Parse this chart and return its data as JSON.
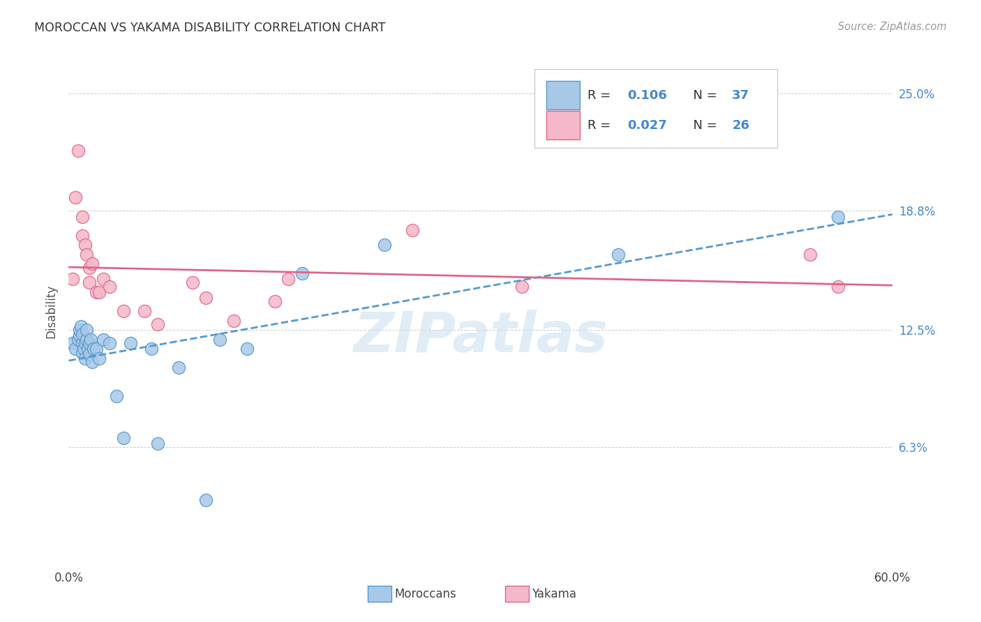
{
  "title": "MOROCCAN VS YAKAMA DISABILITY CORRELATION CHART",
  "source": "Source: ZipAtlas.com",
  "ylabel": "Disability",
  "xlim": [
    0.0,
    0.6
  ],
  "ylim": [
    0.0,
    0.27
  ],
  "yticks": [
    0.063,
    0.125,
    0.188,
    0.25
  ],
  "ytick_labels": [
    "6.3%",
    "12.5%",
    "18.8%",
    "25.0%"
  ],
  "xticks": [
    0.0,
    0.1,
    0.2,
    0.3,
    0.4,
    0.5,
    0.6
  ],
  "xtick_labels": [
    "0.0%",
    "",
    "",
    "",
    "",
    "",
    "60.0%"
  ],
  "moroccan_color": "#a8c8e8",
  "yakama_color": "#f5b8c8",
  "moroccan_edge_color": "#5599cc",
  "yakama_edge_color": "#dd6688",
  "moroccan_line_color": "#5599cc",
  "yakama_line_color": "#dd6688",
  "blue_text_color": "#4488cc",
  "moroccan_R": 0.106,
  "moroccan_N": 37,
  "yakama_R": 0.027,
  "yakama_N": 26,
  "legend_label_moroccan": "Moroccans",
  "legend_label_yakama": "Yakama",
  "watermark": "ZIPatlas",
  "moroccan_x": [
    0.003,
    0.005,
    0.007,
    0.008,
    0.008,
    0.009,
    0.01,
    0.01,
    0.01,
    0.011,
    0.012,
    0.012,
    0.013,
    0.013,
    0.014,
    0.015,
    0.015,
    0.016,
    0.017,
    0.018,
    0.02,
    0.022,
    0.025,
    0.03,
    0.035,
    0.04,
    0.045,
    0.06,
    0.065,
    0.08,
    0.1,
    0.11,
    0.13,
    0.17,
    0.23,
    0.4,
    0.56
  ],
  "moroccan_y": [
    0.118,
    0.115,
    0.12,
    0.122,
    0.125,
    0.127,
    0.113,
    0.118,
    0.123,
    0.115,
    0.11,
    0.118,
    0.12,
    0.125,
    0.115,
    0.112,
    0.118,
    0.12,
    0.108,
    0.115,
    0.115,
    0.11,
    0.12,
    0.118,
    0.09,
    0.068,
    0.118,
    0.115,
    0.065,
    0.105,
    0.035,
    0.12,
    0.115,
    0.155,
    0.17,
    0.165,
    0.185
  ],
  "yakama_x": [
    0.003,
    0.005,
    0.007,
    0.01,
    0.01,
    0.012,
    0.013,
    0.015,
    0.015,
    0.017,
    0.02,
    0.022,
    0.025,
    0.03,
    0.04,
    0.055,
    0.065,
    0.09,
    0.1,
    0.12,
    0.15,
    0.16,
    0.25,
    0.33,
    0.54,
    0.56
  ],
  "yakama_y": [
    0.152,
    0.195,
    0.22,
    0.175,
    0.185,
    0.17,
    0.165,
    0.15,
    0.158,
    0.16,
    0.145,
    0.145,
    0.152,
    0.148,
    0.135,
    0.135,
    0.128,
    0.15,
    0.142,
    0.13,
    0.14,
    0.152,
    0.178,
    0.148,
    0.165,
    0.148
  ]
}
